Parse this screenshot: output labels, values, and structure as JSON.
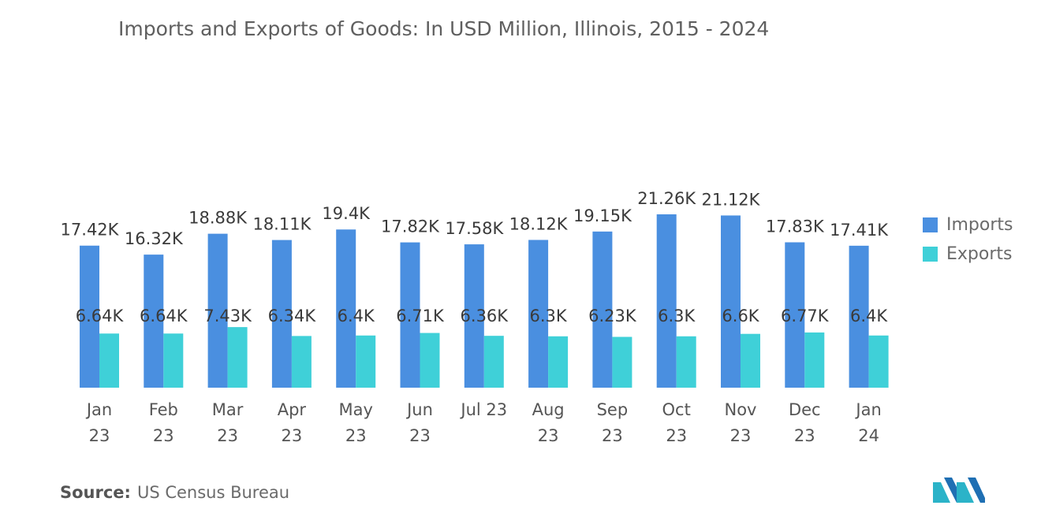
{
  "title": "Imports and Exports of Goods: In USD Million, Illinois, 2015 - 2024",
  "source": {
    "label": "Source:",
    "text": "US Census Bureau"
  },
  "colors": {
    "imports": "#4a8fe0",
    "exports": "#3fd0d8",
    "axis": "#7a7a7a"
  },
  "logo_icon": "mordor-intelligence-logo",
  "chart_data": {
    "type": "bar",
    "categories": [
      [
        "Jan",
        "23"
      ],
      [
        "Feb",
        "23"
      ],
      [
        "Mar",
        "23"
      ],
      [
        "Apr",
        "23"
      ],
      [
        "May",
        "23"
      ],
      [
        "Jun",
        "23"
      ],
      [
        "Jul 23"
      ],
      [
        "Aug",
        "23"
      ],
      [
        "Sep",
        "23"
      ],
      [
        "Oct",
        "23"
      ],
      [
        "Nov",
        "23"
      ],
      [
        "Dec",
        "23"
      ],
      [
        "Jan",
        "24"
      ]
    ],
    "series": [
      {
        "name": "Imports",
        "values": [
          17420,
          16320,
          18880,
          18110,
          19400,
          17820,
          17580,
          18120,
          19150,
          21260,
          21120,
          17830,
          17410
        ],
        "labels": [
          "17.42K",
          "16.32K",
          "18.88K",
          "18.11K",
          "19.4K",
          "17.82K",
          "17.58K",
          "18.12K",
          "19.15K",
          "21.26K",
          "21.12K",
          "17.83K",
          "17.41K"
        ]
      },
      {
        "name": "Exports",
        "values": [
          6640,
          6640,
          7430,
          6340,
          6400,
          6710,
          6360,
          6300,
          6230,
          6300,
          6600,
          6770,
          6400
        ],
        "labels": [
          "6.64K",
          "6.64K",
          "7.43K",
          "6.34K",
          "6.4K",
          "6.71K",
          "6.36K",
          "6.3K",
          "6.23K",
          "6.3K",
          "6.6K",
          "6.77K",
          "6.4K"
        ]
      }
    ],
    "ylim": [
      0,
      21260
    ],
    "grid": false,
    "legend": "right"
  }
}
